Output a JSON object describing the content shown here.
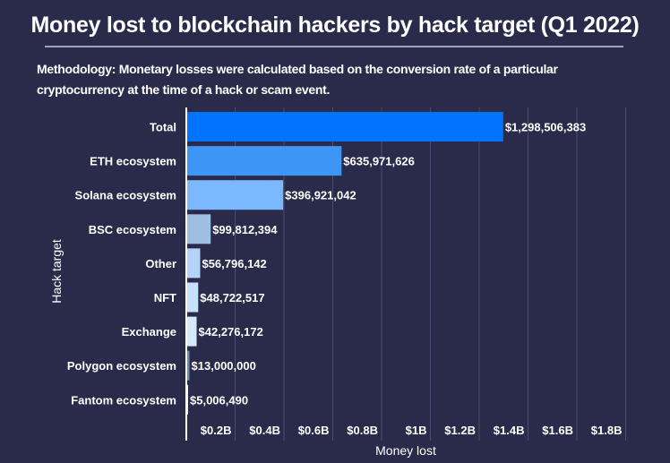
{
  "header": {
    "title": "Money lost to blockchain hackers by hack target (Q1 2022)",
    "methodology": "Methodology: Monetary losses were calculated based on the conversion rate of a particular cryptocurrency at the time of a hack or scam event."
  },
  "chart_data": {
    "type": "bar",
    "orientation": "horizontal",
    "title": "Money lost to blockchain hackers by hack target (Q1 2022)",
    "xlabel": "Money lost",
    "ylabel": "Hack target",
    "xlim": [
      0,
      1.9
    ],
    "x_unit": "billion USD",
    "grid": true,
    "categories": [
      "Total",
      "ETH ecosystem",
      "Solana ecosystem",
      "BSC ecosystem",
      "Other",
      "NFT",
      "Exchange",
      "Polygon ecosystem",
      "Fantom ecosystem"
    ],
    "values": [
      1298506383,
      635971626,
      396921042,
      99812394,
      56796142,
      48722517,
      42276172,
      13000000,
      5006490
    ],
    "data_labels": [
      "$1,298,506,383",
      "$635,971,626",
      "$396,921,042",
      "$99,812,394",
      "$56,796,142",
      "$48,722,517",
      "$42,276,172",
      "$13,000,000",
      "$5,006,490"
    ],
    "bar_colors": [
      "#0073ff",
      "#3d95f5",
      "#7ab8ff",
      "#9fbfe0",
      "#b3d4f8",
      "#c6e0fd",
      "#d6e9fc",
      "#6b8eb0",
      "#f2f5fb"
    ],
    "x_ticks": [
      0.2,
      0.4,
      0.6,
      0.8,
      1.0,
      1.2,
      1.4,
      1.6,
      1.8
    ],
    "x_tick_labels": [
      "$0.2B",
      "$0.4B",
      "$0.6B",
      "$0.8B",
      "$1B",
      "$1.2B",
      "$1.4B",
      "$1.6B",
      "$1.8B"
    ]
  },
  "colors": {
    "background": "#2a2b4b",
    "gridline": "#4a4d72",
    "axis": "#ffffff",
    "text": "#ffffff"
  }
}
